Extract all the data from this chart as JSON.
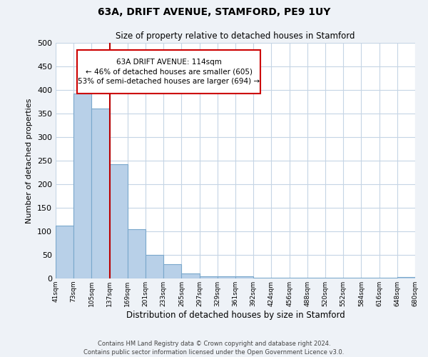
{
  "title": "63A, DRIFT AVENUE, STAMFORD, PE9 1UY",
  "subtitle": "Size of property relative to detached houses in Stamford",
  "bar_values": [
    112,
    393,
    360,
    242,
    105,
    50,
    30,
    10,
    5,
    5,
    5,
    1,
    1,
    1,
    1,
    1,
    1,
    1,
    1,
    3
  ],
  "bin_labels": [
    "41sqm",
    "73sqm",
    "105sqm",
    "137sqm",
    "169sqm",
    "201sqm",
    "233sqm",
    "265sqm",
    "297sqm",
    "329sqm",
    "361sqm",
    "392sqm",
    "424sqm",
    "456sqm",
    "488sqm",
    "520sqm",
    "552sqm",
    "584sqm",
    "616sqm",
    "648sqm",
    "680sqm"
  ],
  "bar_color": "#b8d0e8",
  "bar_edge_color": "#7aa8cc",
  "property_line_color": "#bb0000",
  "annotation_text_line1": "63A DRIFT AVENUE: 114sqm",
  "annotation_text_line2": "← 46% of detached houses are smaller (605)",
  "annotation_text_line3": "53% of semi-detached houses are larger (694) →",
  "xlabel": "Distribution of detached houses by size in Stamford",
  "ylabel": "Number of detached properties",
  "ylim": [
    0,
    500
  ],
  "yticks": [
    0,
    50,
    100,
    150,
    200,
    250,
    300,
    350,
    400,
    450,
    500
  ],
  "footer_line1": "Contains HM Land Registry data © Crown copyright and database right 2024.",
  "footer_line2": "Contains public sector information licensed under the Open Government Licence v3.0.",
  "bg_color": "#eef2f7",
  "plot_bg_color": "#ffffff",
  "grid_color": "#c5d5e5"
}
